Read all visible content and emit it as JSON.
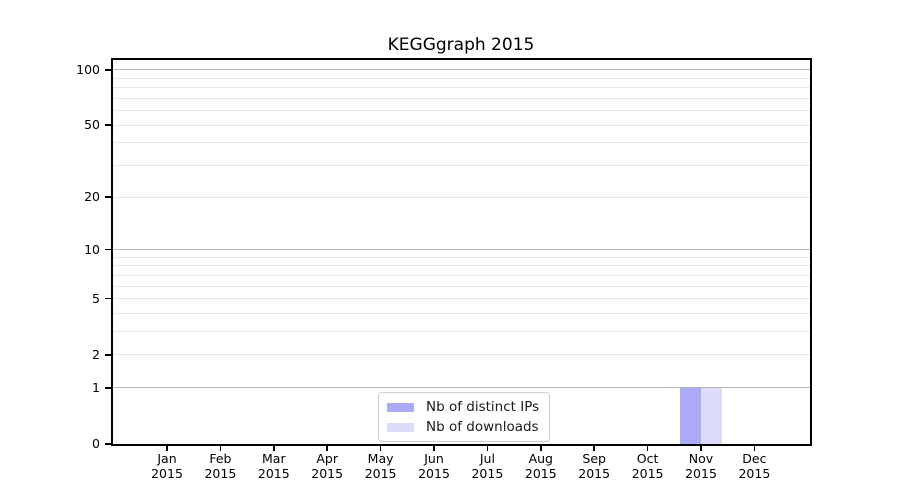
{
  "figure": {
    "background": "#ffffff"
  },
  "chart_data": {
    "type": "bar",
    "title": "KEGGgraph 2015",
    "xlabel": "",
    "ylabel": "",
    "categories": [
      "Jan 2015",
      "Feb 2015",
      "Mar 2015",
      "Apr 2015",
      "May 2015",
      "Jun 2015",
      "Jul 2015",
      "Aug 2015",
      "Sep 2015",
      "Oct 2015",
      "Nov 2015",
      "Dec 2015"
    ],
    "series": [
      {
        "name": "Nb of distinct IPs",
        "color": "#aaaaf8",
        "values": [
          0,
          0,
          0,
          0,
          0,
          0,
          0,
          0,
          0,
          0,
          1,
          0
        ]
      },
      {
        "name": "Nb of downloads",
        "color": "#dcdcf8",
        "values": [
          0,
          0,
          0,
          0,
          0,
          0,
          0,
          0,
          0,
          0,
          1,
          0
        ]
      }
    ],
    "y_axis": {
      "scale": "log10(value+1)",
      "tick_values": [
        0,
        1,
        2,
        5,
        10,
        20,
        50,
        100
      ],
      "gridline_values": [
        1,
        2,
        3,
        4,
        5,
        6,
        7,
        8,
        9,
        10,
        20,
        30,
        40,
        50,
        60,
        70,
        80,
        90,
        100
      ],
      "emphasized_gridline_values": [
        1,
        10,
        100
      ],
      "ylim": [
        0,
        113
      ]
    },
    "grid": true,
    "legend": {
      "position": "bottom-center"
    }
  },
  "colors": {
    "axis": "#000000",
    "gridline_minor": "#e7e7e7",
    "gridline_major": "#b9b9b9",
    "legend_border": "#cfcfcf",
    "bar_distinct_ips": "#aaaaf8",
    "bar_downloads": "#dcdcf8"
  }
}
